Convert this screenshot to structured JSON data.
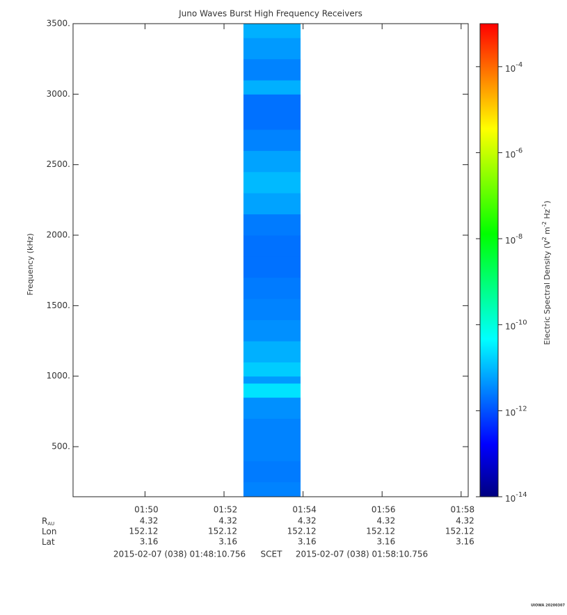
{
  "chart_data": {
    "type": "spectrogram",
    "title": "Juno Waves Burst High Frequency Receivers",
    "y_label": "Frequency (kHz)",
    "xlim": [
      {
        "value": 6490.756,
        "label": "2015-02-07 (038) 01:48:10.756"
      },
      {
        "value": 7090.756,
        "label": "2015-02-07 (038) 01:58:10.756"
      }
    ],
    "x_frame": "SCET",
    "xticks": [
      {
        "value": 6600,
        "label": "01:50"
      },
      {
        "value": 6720,
        "label": "01:52"
      },
      {
        "value": 6840,
        "label": "01:54"
      },
      {
        "value": 6960,
        "label": "01:56"
      },
      {
        "value": 7080,
        "label": "01:58"
      }
    ],
    "ylim": [
      145,
      3500
    ],
    "yticks": [
      {
        "value": 500,
        "label": "500."
      },
      {
        "value": 1000,
        "label": "1000."
      },
      {
        "value": 1500,
        "label": "1500."
      },
      {
        "value": 2000,
        "label": "2000."
      },
      {
        "value": 2500,
        "label": "2500."
      },
      {
        "value": 3000,
        "label": "3000."
      },
      {
        "value": 3500,
        "label": "3500."
      }
    ],
    "xbins": [
      6749.5,
      6836.2
    ],
    "ybins": [
      145,
      250,
      400,
      550,
      700,
      850,
      950,
      1000,
      1100,
      1250,
      1400,
      1550,
      1700,
      1850,
      2000,
      2150,
      2300,
      2450,
      2600,
      2750,
      2900,
      3000,
      3100,
      3250,
      3400,
      3500
    ],
    "values": [
      3e-12,
      2.5e-12,
      3e-12,
      3e-12,
      4e-12,
      2.5e-11,
      5e-12,
      1.5e-11,
      8e-12,
      4e-12,
      3e-12,
      2.5e-12,
      2e-12,
      2e-12,
      2.5e-12,
      6e-12,
      1e-11,
      6e-12,
      3e-12,
      2e-12,
      2e-12,
      8e-12,
      3e-12,
      5e-12,
      8e-12
    ],
    "colorbar": {
      "label": {
        "text": "Electric Spectral Density (V",
        "sup1": "2",
        "mid1": " m",
        "sup2": "-2",
        "mid2": " Hz",
        "sup3": "-1",
        "end": ")"
      },
      "clim": [
        1e-14,
        0.001
      ],
      "log": true,
      "colormap": [
        "#000080",
        "#0000ff",
        "#0080ff",
        "#00ffff",
        "#00ff80",
        "#00ff00",
        "#80ff00",
        "#ffff00",
        "#ff8000",
        "#ff0000"
      ],
      "ticks": [
        {
          "value": 1e-14,
          "label": "10",
          "exponent": "-14"
        },
        {
          "value": 1e-12,
          "label": "10",
          "exponent": "-12"
        },
        {
          "value": 1e-10,
          "label": "10",
          "exponent": "-10"
        },
        {
          "value": 1e-08,
          "label": "10",
          "exponent": "-8"
        },
        {
          "value": 1e-06,
          "label": "10",
          "exponent": "-6"
        },
        {
          "value": 0.0001,
          "label": "10",
          "exponent": "-4"
        }
      ]
    },
    "ephemeris": [
      {
        "label": "R",
        "sub": "AU",
        "values": [
          4.32,
          4.32,
          4.32,
          4.32,
          4.32
        ]
      },
      {
        "label": "Lon",
        "values": [
          152.12,
          152.12,
          152.12,
          152.12,
          152.12
        ]
      },
      {
        "label": "Lat",
        "values": [
          3.16,
          3.16,
          3.16,
          3.16,
          3.16
        ]
      }
    ],
    "stamp": "UIOWA 20200307"
  }
}
